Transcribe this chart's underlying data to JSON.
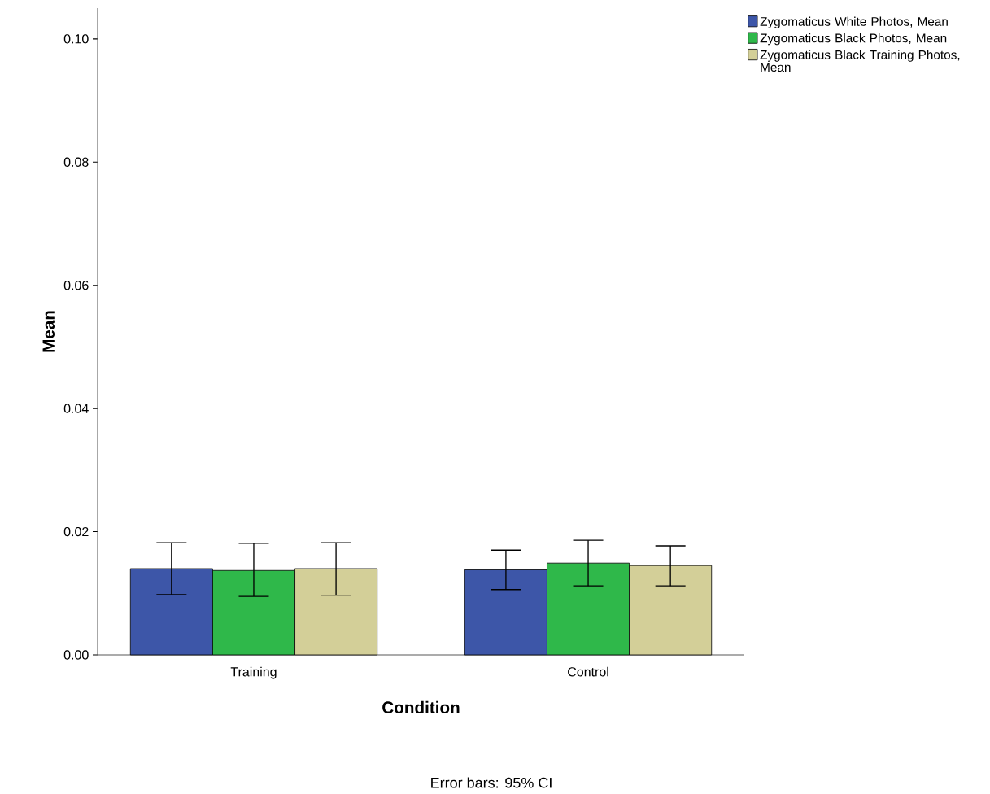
{
  "chart_data": {
    "type": "bar",
    "xlabel": "Condition",
    "ylabel": "Mean",
    "categories": [
      "Training",
      "Control"
    ],
    "series": [
      {
        "name": "Zygomaticus White Photos, Mean",
        "color": "#3d56a8",
        "values": [
          0.014,
          0.0138
        ],
        "errors": [
          [
            0.0098,
            0.0182
          ],
          [
            0.0106,
            0.017
          ]
        ]
      },
      {
        "name": "Zygomaticus Black Photos, Mean",
        "color": "#2fb84a",
        "values": [
          0.0137,
          0.0149
        ],
        "errors": [
          [
            0.0095,
            0.0181
          ],
          [
            0.0112,
            0.0186
          ]
        ]
      },
      {
        "name": "Zygomaticus Black Training Photos, Mean",
        "color": "#d3cf98",
        "values": [
          0.014,
          0.0145
        ],
        "errors": [
          [
            0.0097,
            0.0182
          ],
          [
            0.0112,
            0.0177
          ]
        ]
      }
    ],
    "ylim": [
      0,
      0.105
    ],
    "yticks": [
      {
        "value": 0,
        "label": "0.00"
      },
      {
        "value": 0.02,
        "label": "0.02"
      },
      {
        "value": 0.04,
        "label": "0.04"
      },
      {
        "value": 0.06,
        "label": "0.06"
      },
      {
        "value": 0.08,
        "label": "0.08"
      },
      {
        "value": 0.1,
        "label": "0.10"
      }
    ],
    "legend": "top right",
    "annotations": [
      "Error bars: 95% CI"
    ]
  }
}
